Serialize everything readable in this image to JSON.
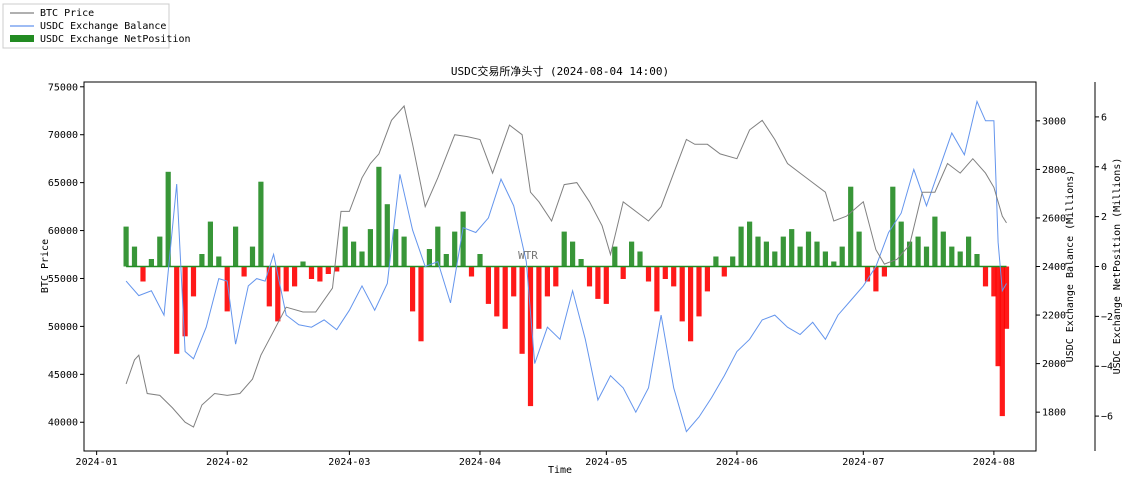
{
  "chart_data": {
    "type": "line",
    "title": "USDC交易所净头寸 (2024-08-04 14:00)",
    "watermark": "WTR",
    "xlabel": "Time",
    "ylabel_left": "BTC Price",
    "ylabel_right1": "USDC Exchange Balance (Millions)",
    "ylabel_right2": "USDC Exchange NetPosition (Millions)",
    "x_range": [
      "2023-12-29",
      "2024-08-11"
    ],
    "x_ticks": [
      "2024-01",
      "2024-02",
      "2024-03",
      "2024-04",
      "2024-05",
      "2024-06",
      "2024-07",
      "2024-08"
    ],
    "x_tick_dates": [
      "2024-01-01",
      "2024-02-01",
      "2024-03-01",
      "2024-04-01",
      "2024-05-01",
      "2024-06-01",
      "2024-07-01",
      "2024-08-01"
    ],
    "ylim_left": [
      37000,
      75500
    ],
    "yticks_left": [
      40000,
      45000,
      50000,
      55000,
      60000,
      65000,
      70000,
      75000
    ],
    "ylim_right1": [
      1640,
      3160
    ],
    "yticks_right1": [
      1800,
      2000,
      2200,
      2400,
      2600,
      2800,
      3000
    ],
    "ylim_right2": [
      -7.4,
      7.4
    ],
    "yticks_right2": [
      -6,
      -4,
      -2,
      0,
      2,
      4,
      6
    ],
    "legend": {
      "position": "top-left (outside plot)",
      "items": [
        {
          "label": "BTC Price",
          "color": "#808080",
          "kind": "line"
        },
        {
          "label": "USDC Exchange Balance",
          "color": "#6495ed",
          "kind": "line"
        },
        {
          "label": "USDC Exchange NetPosition",
          "color": "#228b22",
          "kind": "bar"
        }
      ]
    },
    "colors": {
      "btc_price": "#808080",
      "usdc_balance": "#6495ed",
      "netposition_positive": "#228b22",
      "netposition_negative": "#ff0000"
    },
    "series": [
      {
        "name": "BTC Price",
        "axis": "left",
        "x": [
          "2024-01-08",
          "2024-01-10",
          "2024-01-11",
          "2024-01-13",
          "2024-01-16",
          "2024-01-19",
          "2024-01-22",
          "2024-01-24",
          "2024-01-26",
          "2024-01-29",
          "2024-02-01",
          "2024-02-04",
          "2024-02-07",
          "2024-02-09",
          "2024-02-12",
          "2024-02-15",
          "2024-02-19",
          "2024-02-22",
          "2024-02-26",
          "2024-02-28",
          "2024-03-01",
          "2024-03-04",
          "2024-03-06",
          "2024-03-08",
          "2024-03-11",
          "2024-03-14",
          "2024-03-16",
          "2024-03-19",
          "2024-03-22",
          "2024-03-26",
          "2024-03-29",
          "2024-04-01",
          "2024-04-04",
          "2024-04-08",
          "2024-04-11",
          "2024-04-13",
          "2024-04-15",
          "2024-04-18",
          "2024-04-21",
          "2024-04-24",
          "2024-04-27",
          "2024-04-30",
          "2024-05-02",
          "2024-05-05",
          "2024-05-08",
          "2024-05-11",
          "2024-05-14",
          "2024-05-17",
          "2024-05-20",
          "2024-05-22",
          "2024-05-25",
          "2024-05-28",
          "2024-06-01",
          "2024-06-04",
          "2024-06-07",
          "2024-06-10",
          "2024-06-13",
          "2024-06-16",
          "2024-06-19",
          "2024-06-22",
          "2024-06-24",
          "2024-06-27",
          "2024-07-01",
          "2024-07-04",
          "2024-07-06",
          "2024-07-09",
          "2024-07-12",
          "2024-07-15",
          "2024-07-18",
          "2024-07-21",
          "2024-07-24",
          "2024-07-27",
          "2024-07-30",
          "2024-08-01",
          "2024-08-03",
          "2024-08-04"
        ],
        "values": [
          44000,
          46500,
          47000,
          43000,
          42800,
          41500,
          40000,
          39500,
          41800,
          43000,
          42800,
          43000,
          44500,
          47000,
          49500,
          52000,
          51500,
          51500,
          54000,
          62000,
          62000,
          65500,
          67000,
          68000,
          71500,
          73000,
          69000,
          62500,
          65500,
          70000,
          69800,
          69500,
          66000,
          71000,
          70000,
          64000,
          63000,
          61000,
          64800,
          65000,
          63000,
          60500,
          57500,
          63000,
          62000,
          61000,
          62500,
          66000,
          69500,
          69000,
          69000,
          68000,
          67500,
          70500,
          71500,
          69500,
          67000,
          66000,
          65000,
          64000,
          61000,
          61500,
          63000,
          58000,
          56500,
          57000,
          58500,
          64000,
          64000,
          67000,
          66000,
          67500,
          66000,
          64500,
          61500,
          60800
        ]
      },
      {
        "name": "USDC Exchange Balance",
        "axis": "right1",
        "x": [
          "2024-01-08",
          "2024-01-11",
          "2024-01-14",
          "2024-01-17",
          "2024-01-20",
          "2024-01-22",
          "2024-01-24",
          "2024-01-27",
          "2024-01-30",
          "2024-02-01",
          "2024-02-03",
          "2024-02-06",
          "2024-02-08",
          "2024-02-10",
          "2024-02-12",
          "2024-02-15",
          "2024-02-18",
          "2024-02-21",
          "2024-02-24",
          "2024-02-27",
          "2024-03-01",
          "2024-03-04",
          "2024-03-07",
          "2024-03-10",
          "2024-03-13",
          "2024-03-16",
          "2024-03-19",
          "2024-03-22",
          "2024-03-25",
          "2024-03-28",
          "2024-03-31",
          "2024-04-03",
          "2024-04-06",
          "2024-04-09",
          "2024-04-12",
          "2024-04-14",
          "2024-04-17",
          "2024-04-20",
          "2024-04-23",
          "2024-04-26",
          "2024-04-29",
          "2024-05-02",
          "2024-05-05",
          "2024-05-08",
          "2024-05-11",
          "2024-05-14",
          "2024-05-17",
          "2024-05-20",
          "2024-05-23",
          "2024-05-26",
          "2024-05-29",
          "2024-06-01",
          "2024-06-04",
          "2024-06-07",
          "2024-06-10",
          "2024-06-13",
          "2024-06-16",
          "2024-06-19",
          "2024-06-22",
          "2024-06-25",
          "2024-06-28",
          "2024-07-01",
          "2024-07-04",
          "2024-07-07",
          "2024-07-10",
          "2024-07-13",
          "2024-07-16",
          "2024-07-19",
          "2024-07-22",
          "2024-07-25",
          "2024-07-28",
          "2024-07-30",
          "2024-08-01",
          "2024-08-02",
          "2024-08-03",
          "2024-08-04"
        ],
        "values": [
          2340,
          2280,
          2300,
          2200,
          2740,
          2050,
          2020,
          2150,
          2350,
          2340,
          2080,
          2320,
          2350,
          2340,
          2450,
          2200,
          2160,
          2150,
          2180,
          2140,
          2220,
          2320,
          2220,
          2330,
          2780,
          2550,
          2400,
          2420,
          2250,
          2560,
          2540,
          2600,
          2760,
          2650,
          2420,
          2000,
          2150,
          2100,
          2300,
          2100,
          1850,
          1950,
          1900,
          1800,
          1900,
          2200,
          1900,
          1720,
          1780,
          1860,
          1950,
          2050,
          2100,
          2180,
          2200,
          2150,
          2120,
          2170,
          2100,
          2200,
          2260,
          2320,
          2400,
          2540,
          2620,
          2800,
          2650,
          2800,
          2950,
          2860,
          3080,
          3000,
          3000,
          2500,
          2300,
          2330
        ]
      },
      {
        "name": "USDC Exchange NetPosition",
        "type": "bar",
        "axis": "right2",
        "x": [
          "2024-01-08",
          "2024-01-10",
          "2024-01-12",
          "2024-01-14",
          "2024-01-16",
          "2024-01-18",
          "2024-01-20",
          "2024-01-22",
          "2024-01-24",
          "2024-01-26",
          "2024-01-28",
          "2024-01-30",
          "2024-02-01",
          "2024-02-03",
          "2024-02-05",
          "2024-02-07",
          "2024-02-09",
          "2024-02-11",
          "2024-02-13",
          "2024-02-15",
          "2024-02-17",
          "2024-02-19",
          "2024-02-21",
          "2024-02-23",
          "2024-02-25",
          "2024-02-27",
          "2024-02-29",
          "2024-03-02",
          "2024-03-04",
          "2024-03-06",
          "2024-03-08",
          "2024-03-10",
          "2024-03-12",
          "2024-03-14",
          "2024-03-16",
          "2024-03-18",
          "2024-03-20",
          "2024-03-22",
          "2024-03-24",
          "2024-03-26",
          "2024-03-28",
          "2024-03-30",
          "2024-04-01",
          "2024-04-03",
          "2024-04-05",
          "2024-04-07",
          "2024-04-09",
          "2024-04-11",
          "2024-04-13",
          "2024-04-15",
          "2024-04-17",
          "2024-04-19",
          "2024-04-21",
          "2024-04-23",
          "2024-04-25",
          "2024-04-27",
          "2024-04-29",
          "2024-05-01",
          "2024-05-03",
          "2024-05-05",
          "2024-05-07",
          "2024-05-09",
          "2024-05-11",
          "2024-05-13",
          "2024-05-15",
          "2024-05-17",
          "2024-05-19",
          "2024-05-21",
          "2024-05-23",
          "2024-05-25",
          "2024-05-27",
          "2024-05-29",
          "2024-05-31",
          "2024-06-02",
          "2024-06-04",
          "2024-06-06",
          "2024-06-08",
          "2024-06-10",
          "2024-06-12",
          "2024-06-14",
          "2024-06-16",
          "2024-06-18",
          "2024-06-20",
          "2024-06-22",
          "2024-06-24",
          "2024-06-26",
          "2024-06-28",
          "2024-06-30",
          "2024-07-02",
          "2024-07-04",
          "2024-07-06",
          "2024-07-08",
          "2024-07-10",
          "2024-07-12",
          "2024-07-14",
          "2024-07-16",
          "2024-07-18",
          "2024-07-20",
          "2024-07-22",
          "2024-07-24",
          "2024-07-26",
          "2024-07-28",
          "2024-07-30",
          "2024-08-01",
          "2024-08-02",
          "2024-08-03",
          "2024-08-04"
        ],
        "values": [
          1.6,
          0.8,
          -0.6,
          0.3,
          1.2,
          3.8,
          -3.5,
          -2.8,
          -1.2,
          0.5,
          1.8,
          0.4,
          -1.8,
          1.6,
          -0.4,
          0.8,
          3.4,
          -1.6,
          -2.2,
          -1.0,
          -0.8,
          0.2,
          -0.5,
          -0.6,
          -0.3,
          -0.2,
          1.6,
          1.0,
          0.6,
          1.5,
          4.0,
          2.5,
          1.5,
          1.2,
          -1.8,
          -3.0,
          0.7,
          1.6,
          0.5,
          1.4,
          2.2,
          -0.4,
          0.5,
          -1.5,
          -2.0,
          -2.5,
          -1.2,
          -3.5,
          -5.6,
          -2.5,
          -1.2,
          -0.8,
          1.4,
          1.0,
          0.3,
          -0.8,
          -1.3,
          -1.5,
          0.8,
          -0.5,
          1.0,
          0.6,
          -0.6,
          -1.8,
          -0.5,
          -0.8,
          -2.2,
          -3.0,
          -2.0,
          -1.0,
          0.4,
          -0.4,
          0.4,
          1.6,
          1.8,
          1.2,
          1.0,
          0.6,
          1.2,
          1.5,
          0.8,
          1.4,
          1.0,
          0.6,
          0.2,
          0.8,
          3.2,
          1.4,
          -0.6,
          -1.0,
          -0.4,
          3.2,
          1.8,
          1.0,
          1.2,
          0.8,
          2.0,
          1.4,
          0.8,
          0.6,
          1.2,
          0.5,
          -0.8,
          -1.2,
          -4.0,
          -6.0,
          -2.5
        ]
      }
    ]
  }
}
